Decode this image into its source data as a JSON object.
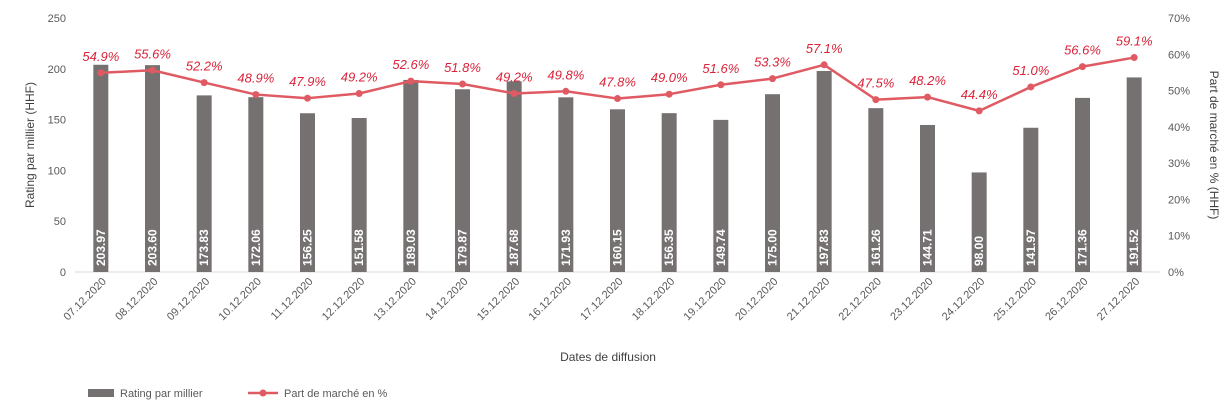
{
  "chart_data": {
    "type": "bar+line",
    "title": "",
    "xlabel": "Dates de diffusion",
    "ylabel_left": "Rating par millier (HHF)",
    "ylabel_right": "Part de marché en % (HHF)",
    "ylim_left": [
      0,
      250
    ],
    "yticks_left": [
      "0",
      "50",
      "100",
      "150",
      "200",
      "250"
    ],
    "ylim_right": [
      0,
      70
    ],
    "yticks_right": [
      "0%",
      "10%",
      "20%",
      "30%",
      "40%",
      "50%",
      "60%",
      "70%"
    ],
    "grid": false,
    "legend_position": "bottom-left",
    "categories": [
      "07.12.2020",
      "08.12.2020",
      "09.12.2020",
      "10.12.2020",
      "11.12.2020",
      "12.12.2020",
      "13.12.2020",
      "14.12.2020",
      "15.12.2020",
      "16.12.2020",
      "17.12.2020",
      "18.12.2020",
      "19.12.2020",
      "20.12.2020",
      "21.12.2020",
      "22.12.2020",
      "23.12.2020",
      "24.12.2020",
      "25.12.2020",
      "26.12.2020",
      "27.12.2020"
    ],
    "series": [
      {
        "name": "Rating par millier",
        "type": "bar",
        "axis": "left",
        "color": "#767171",
        "values": [
          203.97,
          203.6,
          173.83,
          172.06,
          156.25,
          151.58,
          189.03,
          179.87,
          187.68,
          171.93,
          160.15,
          156.35,
          149.74,
          175.0,
          197.83,
          161.26,
          144.71,
          98.0,
          141.97,
          171.36,
          191.52
        ],
        "labels": [
          "203.97",
          "203.60",
          "173.83",
          "172.06",
          "156.25",
          "151.58",
          "189.03",
          "179.87",
          "187.68",
          "171.93",
          "160.15",
          "156.35",
          "149.74",
          "175.00",
          "197.83",
          "161.26",
          "144.71",
          "98.00",
          "141.97",
          "171.36",
          "191.52"
        ]
      },
      {
        "name": "Part de marché en %",
        "type": "line",
        "axis": "right",
        "color": "#e05a63",
        "values": [
          54.9,
          55.6,
          52.2,
          48.9,
          47.9,
          49.2,
          52.6,
          51.8,
          49.2,
          49.8,
          47.8,
          49.0,
          51.6,
          53.3,
          57.1,
          47.5,
          48.2,
          44.4,
          51.0,
          56.6,
          59.1
        ],
        "labels": [
          "54.9%",
          "55.6%",
          "52.2%",
          "48.9%",
          "47.9%",
          "49.2%",
          "52.6%",
          "51.8%",
          "49.2%",
          "49.8%",
          "47.8%",
          "49.0%",
          "51.6%",
          "53.3%",
          "57.1%",
          "47.5%",
          "48.2%",
          "44.4%",
          "51.0%",
          "56.6%",
          "59.1%"
        ]
      }
    ]
  }
}
